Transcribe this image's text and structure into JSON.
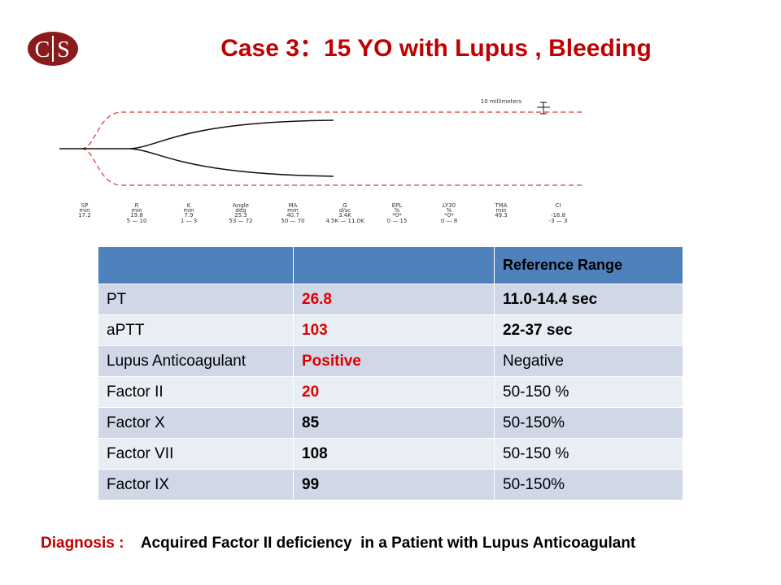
{
  "logo": {
    "left": "C",
    "right": "S"
  },
  "title": "Case 3：15 YO with Lupus , Bleeding",
  "teg": {
    "scale_label": "10 millimeters",
    "parameters": [
      {
        "name": "SP",
        "unit": "min",
        "value": "17.2"
      },
      {
        "name": "R",
        "unit": "min",
        "value": "19.8",
        "range": "5 — 10"
      },
      {
        "name": "K",
        "unit": "min",
        "value": "7.9",
        "range": "1 — 3"
      },
      {
        "name": "Angle",
        "unit": "deg",
        "value": "25.3",
        "range": "53 — 72"
      },
      {
        "name": "MA",
        "unit": "mm",
        "value": "40.7",
        "range": "50 — 70"
      },
      {
        "name": "G",
        "unit": "d/sc",
        "value": "3.4K",
        "range": "4.5K — 11.0K"
      },
      {
        "name": "EPL",
        "unit": "%",
        "value": "*0*",
        "range": "0 — 15"
      },
      {
        "name": "LY30",
        "unit": "%",
        "value": "*0*",
        "range": "0 — 8"
      },
      {
        "name": "TMA",
        "unit": "min",
        "value": "49.3"
      },
      {
        "name": "CI",
        "value": "-16.8",
        "range": "-3 — 3"
      }
    ]
  },
  "table": {
    "header": "Reference Range",
    "rows": [
      [
        "PT",
        "26.8",
        "11.0-14.4 sec"
      ],
      [
        "aPTT",
        "103",
        "22-37 sec"
      ],
      [
        "Lupus Anticoagulant",
        "Positive",
        "Negative"
      ],
      [
        "Factor II",
        "20",
        "50-150 %"
      ],
      [
        "Factor X",
        "85",
        "50-150%"
      ],
      [
        "Factor VII",
        "108",
        "50-150 %"
      ],
      [
        "Factor IX",
        "99",
        "50-150%"
      ]
    ]
  },
  "diagnosis": {
    "label": "Diagnosis :",
    "text": "Acquired Factor II deficiency  in a Patient with Lupus Anticoagulant"
  }
}
